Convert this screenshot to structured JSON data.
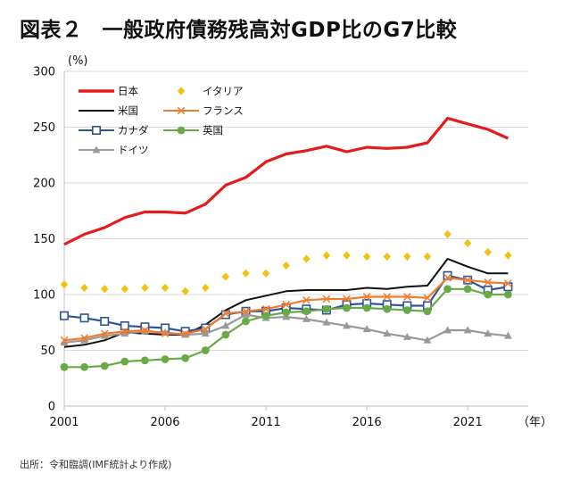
{
  "title": {
    "label": "図表２",
    "text": "一般政府債務残高対GDP比のG7比較"
  },
  "source": "出所：令和臨調(IMF統計より作成)",
  "chart_data": {
    "type": "line",
    "title": "一般政府債務残高対GDP比のG7比較",
    "y_unit": "(%)",
    "x_unit": "（年）",
    "ylim": [
      0,
      300
    ],
    "y_ticks": [
      0,
      50,
      100,
      150,
      200,
      250,
      300
    ],
    "x_ticks": [
      2001,
      2006,
      2011,
      2016,
      2021
    ],
    "x": [
      2001,
      2002,
      2003,
      2004,
      2005,
      2006,
      2007,
      2008,
      2009,
      2010,
      2011,
      2012,
      2013,
      2014,
      2015,
      2016,
      2017,
      2018,
      2019,
      2020,
      2021,
      2022,
      2023
    ],
    "series": [
      {
        "name": "日本",
        "color": "#e41a1c",
        "marker": "none",
        "values": [
          145,
          154,
          160,
          169,
          174,
          174,
          173,
          181,
          198,
          205,
          219,
          226,
          229,
          233,
          228,
          232,
          231,
          232,
          236,
          258,
          253,
          248,
          240
        ]
      },
      {
        "name": "米国",
        "color": "#111111",
        "marker": "none",
        "values": [
          53,
          55,
          59,
          66,
          65,
          64,
          64,
          73,
          86,
          95,
          99,
          103,
          104,
          104,
          104,
          106,
          105,
          107,
          108,
          132,
          125,
          119,
          119
        ]
      },
      {
        "name": "カナダ",
        "color": "#2f5597",
        "marker": "square",
        "values": [
          81,
          79,
          76,
          72,
          71,
          70,
          67,
          70,
          82,
          85,
          85,
          88,
          87,
          86,
          91,
          92,
          91,
          90,
          90,
          117,
          113,
          104,
          107
        ]
      },
      {
        "name": "ドイツ",
        "color": "#999999",
        "marker": "triangle",
        "values": [
          57,
          59,
          63,
          65,
          67,
          66,
          64,
          65,
          72,
          82,
          79,
          80,
          78,
          75,
          72,
          69,
          65,
          62,
          59,
          68,
          68,
          65,
          63
        ]
      },
      {
        "name": "イタリア",
        "color": "#f2c211",
        "marker": "diamond",
        "values": [
          109,
          106,
          105,
          105,
          106,
          106,
          103,
          106,
          116,
          119,
          119,
          126,
          132,
          135,
          135,
          134,
          134,
          134,
          134,
          154,
          146,
          138,
          135
        ]
      },
      {
        "name": "フランス",
        "color": "#ef7d31",
        "marker": "x",
        "values": [
          59,
          61,
          65,
          67,
          68,
          65,
          65,
          69,
          83,
          85,
          87,
          91,
          95,
          96,
          96,
          98,
          98,
          98,
          97,
          115,
          113,
          111,
          110
        ]
      },
      {
        "name": "英国",
        "color": "#6aaa46",
        "marker": "circle",
        "values": [
          35,
          35,
          36,
          40,
          41,
          42,
          43,
          50,
          64,
          76,
          81,
          84,
          85,
          87,
          88,
          88,
          87,
          86,
          85,
          105,
          105,
          100,
          100
        ]
      }
    ]
  }
}
